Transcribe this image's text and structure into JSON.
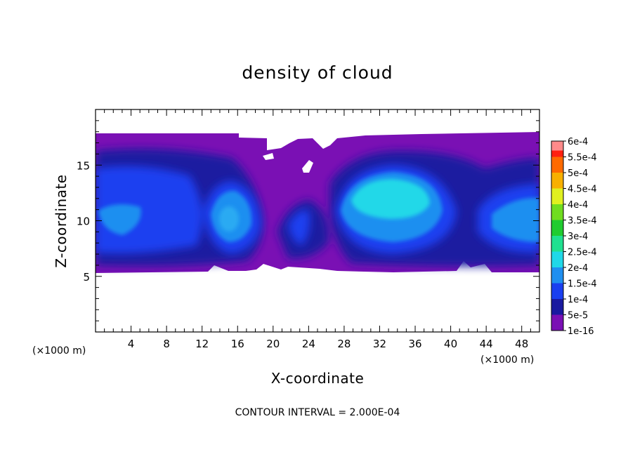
{
  "chart_data": {
    "type": "heatmap",
    "title": "density of cloud",
    "xlabel": "X-coordinate",
    "ylabel": "Z-coordinate",
    "x_unit": "(×1000 m)",
    "z_unit": "(×1000 m)",
    "xlim": [
      0,
      50
    ],
    "ylim": [
      0,
      20
    ],
    "x_ticks": [
      4,
      8,
      12,
      16,
      20,
      24,
      28,
      32,
      36,
      40,
      44,
      48
    ],
    "y_ticks": [
      5,
      10,
      15
    ],
    "contour_interval": "CONTOUR INTERVAL = 2.000E-04",
    "colorbar": {
      "labels": [
        "1e-16",
        "5e-5",
        "1e-4",
        "1.5e-4",
        "2e-4",
        "2.5e-4",
        "3e-4",
        "3.5e-4",
        "4e-4",
        "4.5e-4",
        "5e-4",
        "5.5e-4",
        "6e-4"
      ],
      "colors": [
        "#7a10b4",
        "#1a1aa0",
        "#1a3ff0",
        "#1f8ff0",
        "#20d8e8",
        "#20e090",
        "#20cc30",
        "#70dd20",
        "#e0f020",
        "#f8b000",
        "#ff6a00",
        "#ff2010",
        "#ff8a8a"
      ]
    },
    "cloud_layer": {
      "z_bottom": 5.3,
      "z_top": 17.8
    },
    "high_density_cores": [
      {
        "x": 31.5,
        "z": 11.5,
        "level": "2e-4"
      },
      {
        "x": 14.5,
        "z": 10.5,
        "level": "1.5e-4"
      },
      {
        "x": 47.5,
        "z": 10.5,
        "level": "1.5e-4"
      },
      {
        "x": 4.0,
        "z": 10.0,
        "level": "1e-4"
      }
    ]
  }
}
